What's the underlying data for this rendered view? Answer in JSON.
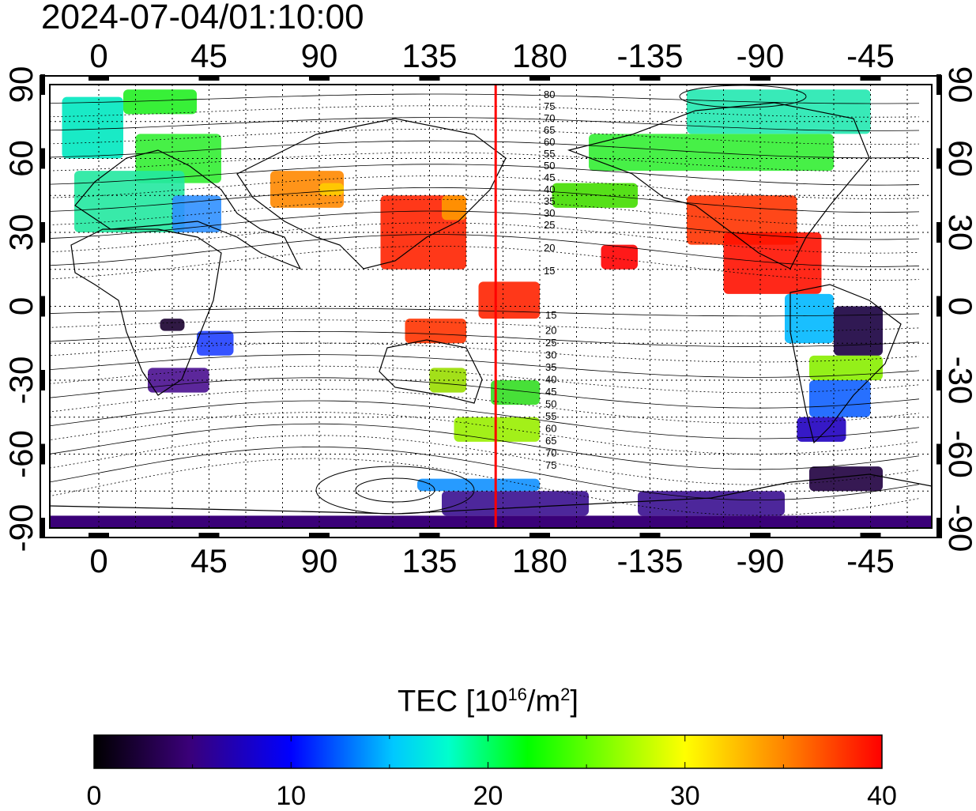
{
  "timestamp": "2024-07-04/01:10:00",
  "map": {
    "x_ticks": [
      "0",
      "45",
      "90",
      "135",
      "180",
      "-135",
      "-90",
      "-45"
    ],
    "y_ticks": [
      "90",
      "60",
      "30",
      "0",
      "-30",
      "-60",
      "-90"
    ],
    "contour_labels_north": [
      "80",
      "75",
      "70",
      "65",
      "60",
      "55",
      "50",
      "45",
      "40",
      "35",
      "30",
      "25",
      "20",
      "15"
    ],
    "contour_labels_south": [
      "15",
      "20",
      "25",
      "30",
      "35",
      "40",
      "45",
      "50",
      "55",
      "60",
      "65",
      "70",
      "75"
    ],
    "terminator_longitude": 162,
    "terminator_color": "#ff0000"
  },
  "colorbar": {
    "title_main": "TEC  [10",
    "title_exp1": "16",
    "title_mid": "/m",
    "title_exp2": "2",
    "title_end": "]",
    "min": 0,
    "max": 40,
    "tick_labels": [
      "0",
      "10",
      "20",
      "30",
      "40"
    ],
    "colors": [
      "#000000",
      "#3a0078",
      "#0000ff",
      "#00ffff",
      "#00ff00",
      "#ffff00",
      "#ff0000"
    ]
  }
}
